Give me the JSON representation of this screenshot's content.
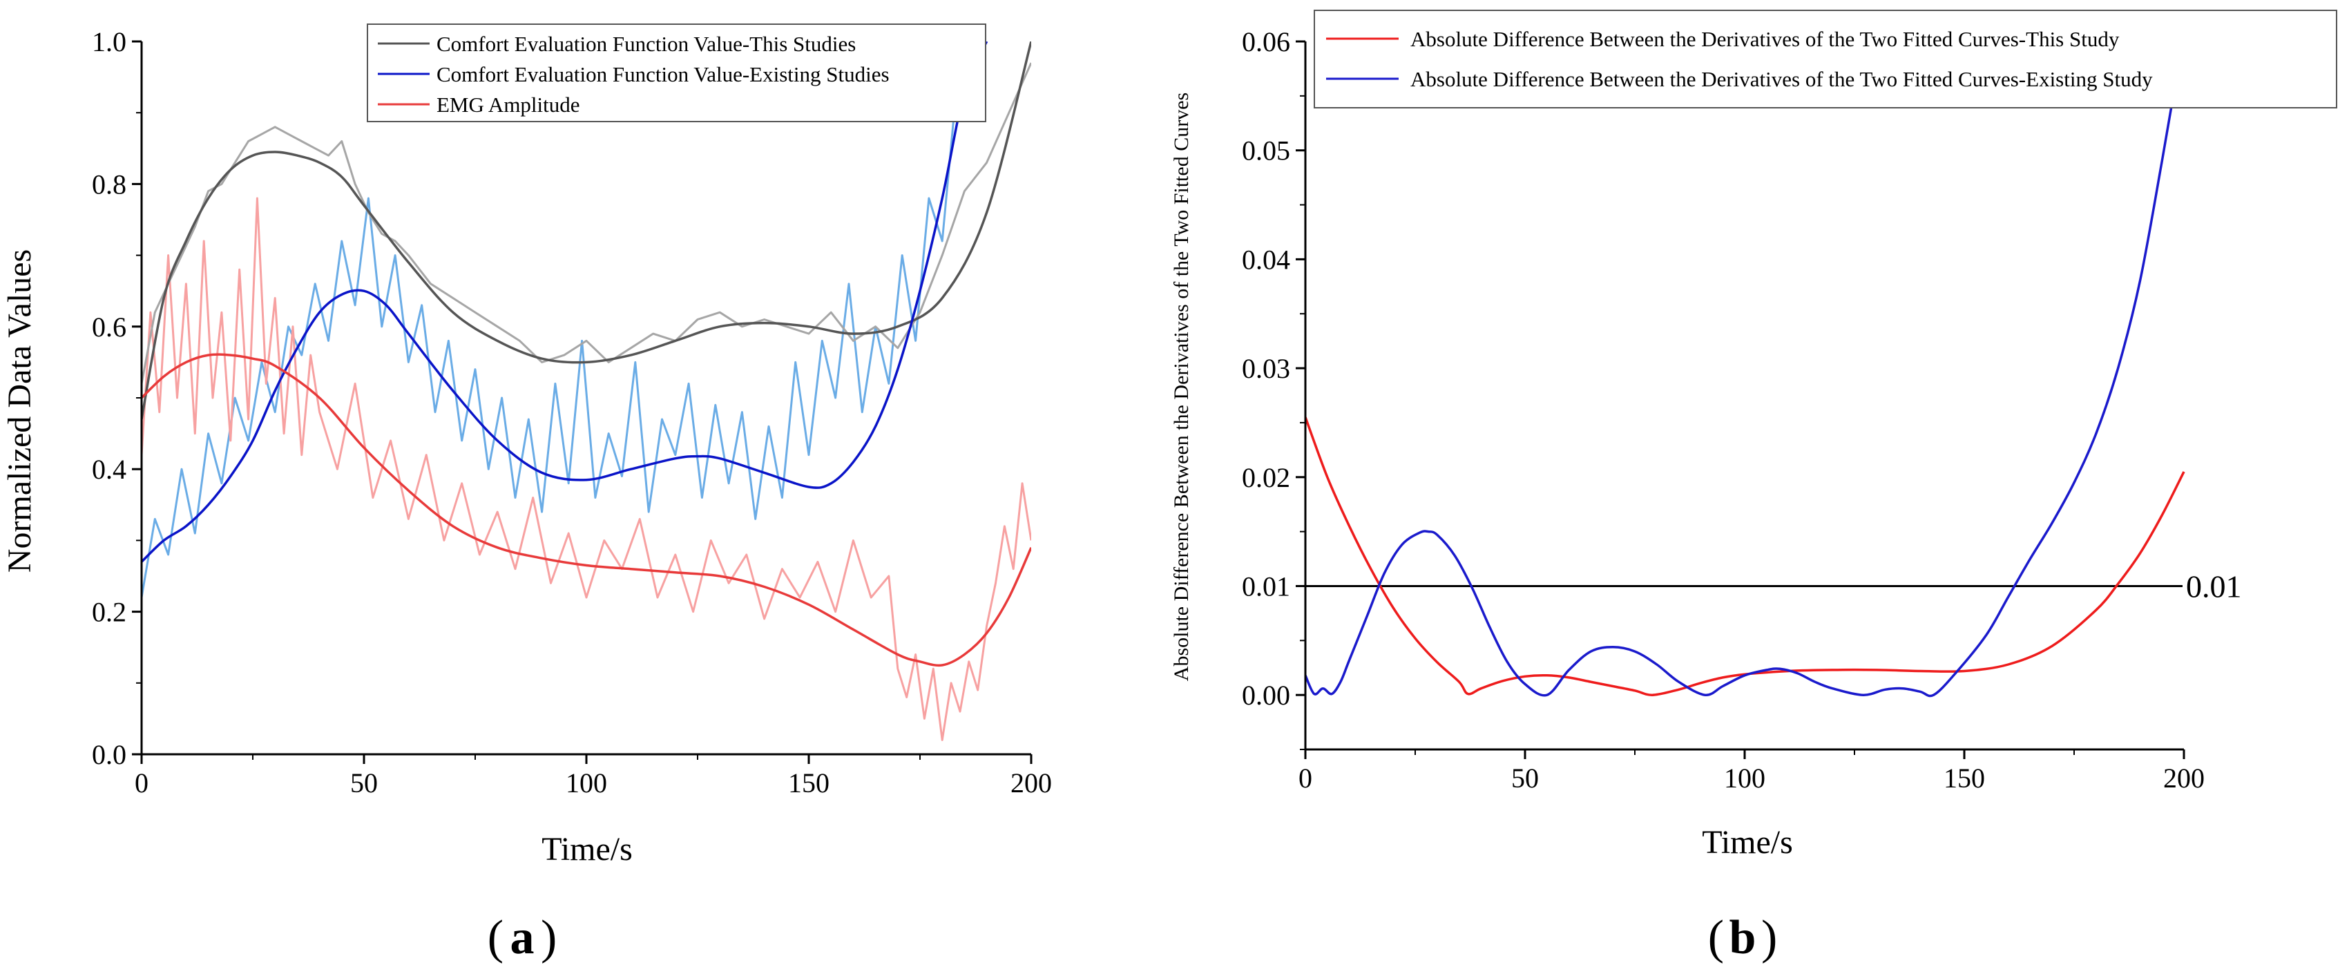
{
  "figure": {
    "panel_label_a": "a",
    "panel_label_b": "b",
    "paren_open": "(",
    "paren_close": ")"
  },
  "colors": {
    "this_study_smooth": "#555555",
    "this_study_raw": "#a6a6a6",
    "existing_smooth": "#0a14c8",
    "existing_raw": "#6aace6",
    "emg_smooth": "#e83a3a",
    "emg_raw": "#f7a1a1",
    "b_this": "#ee1c1c",
    "b_existing": "#1a1acc",
    "axis": "#000000"
  },
  "chart_data": [
    {
      "id": "a",
      "type": "line",
      "xlabel": "Time/s",
      "ylabel": "Normalized Data Values",
      "xlim": [
        0,
        200
      ],
      "ylim": [
        0,
        1.0
      ],
      "xticks": [
        "0",
        "50",
        "100",
        "150",
        "200"
      ],
      "yticks": [
        "0.0",
        "0.2",
        "0.4",
        "0.6",
        "0.8",
        "1.0"
      ],
      "legend_position": "top-right",
      "series": [
        {
          "name": "Comfort Evaluation Function Value-This Studies",
          "kind": "fitted",
          "x": [
            0,
            5,
            10,
            15,
            20,
            25,
            30,
            35,
            40,
            45,
            50,
            60,
            70,
            80,
            90,
            100,
            110,
            120,
            130,
            140,
            150,
            160,
            170,
            180,
            190,
            200
          ],
          "y": [
            0.47,
            0.64,
            0.72,
            0.78,
            0.82,
            0.84,
            0.845,
            0.84,
            0.83,
            0.81,
            0.77,
            0.69,
            0.62,
            0.58,
            0.555,
            0.55,
            0.56,
            0.58,
            0.6,
            0.605,
            0.6,
            0.59,
            0.6,
            0.64,
            0.76,
            1.0
          ]
        },
        {
          "name": "Comfort Evaluation Function Value-Existing Studies",
          "kind": "fitted",
          "x": [
            0,
            5,
            10,
            15,
            20,
            25,
            30,
            35,
            40,
            45,
            50,
            55,
            60,
            70,
            80,
            90,
            100,
            110,
            120,
            125,
            130,
            140,
            150,
            155,
            160,
            165,
            170,
            175,
            180,
            185,
            190
          ],
          "y": [
            0.27,
            0.3,
            0.32,
            0.35,
            0.39,
            0.44,
            0.51,
            0.57,
            0.62,
            0.645,
            0.65,
            0.63,
            0.59,
            0.51,
            0.44,
            0.395,
            0.385,
            0.4,
            0.415,
            0.418,
            0.415,
            0.395,
            0.375,
            0.38,
            0.41,
            0.46,
            0.54,
            0.65,
            0.78,
            0.93,
            1.0
          ]
        },
        {
          "name": "EMG Amplitude",
          "kind": "fitted",
          "x": [
            0,
            5,
            10,
            15,
            20,
            25,
            30,
            40,
            50,
            60,
            70,
            80,
            90,
            100,
            110,
            120,
            130,
            140,
            150,
            160,
            170,
            175,
            180,
            185,
            190,
            195,
            200
          ],
          "y": [
            0.5,
            0.53,
            0.55,
            0.56,
            0.56,
            0.555,
            0.545,
            0.5,
            0.43,
            0.37,
            0.32,
            0.29,
            0.275,
            0.265,
            0.26,
            0.255,
            0.25,
            0.235,
            0.21,
            0.175,
            0.14,
            0.13,
            0.125,
            0.14,
            0.17,
            0.22,
            0.29
          ]
        },
        {
          "name": "Comfort Evaluation Function Value-This Studies (raw)",
          "kind": "raw",
          "x": [
            0,
            3,
            6,
            9,
            12,
            15,
            18,
            21,
            24,
            27,
            30,
            33,
            36,
            39,
            42,
            45,
            48,
            51,
            54,
            57,
            60,
            65,
            70,
            75,
            80,
            85,
            90,
            95,
            100,
            105,
            110,
            115,
            120,
            125,
            130,
            135,
            140,
            145,
            150,
            155,
            160,
            165,
            170,
            175,
            180,
            185,
            190,
            195,
            200
          ],
          "y": [
            0.52,
            0.62,
            0.66,
            0.7,
            0.74,
            0.79,
            0.8,
            0.83,
            0.86,
            0.87,
            0.88,
            0.87,
            0.86,
            0.85,
            0.84,
            0.86,
            0.8,
            0.76,
            0.73,
            0.72,
            0.7,
            0.66,
            0.64,
            0.62,
            0.6,
            0.58,
            0.55,
            0.56,
            0.58,
            0.55,
            0.57,
            0.59,
            0.58,
            0.61,
            0.62,
            0.6,
            0.61,
            0.6,
            0.59,
            0.62,
            0.58,
            0.6,
            0.57,
            0.62,
            0.7,
            0.79,
            0.83,
            0.9,
            0.97
          ]
        },
        {
          "name": "Comfort Evaluation Function Value-Existing Studies (raw)",
          "kind": "raw",
          "x": [
            0,
            3,
            6,
            9,
            12,
            15,
            18,
            21,
            24,
            27,
            30,
            33,
            36,
            39,
            42,
            45,
            48,
            51,
            54,
            57,
            60,
            63,
            66,
            69,
            72,
            75,
            78,
            81,
            84,
            87,
            90,
            93,
            96,
            99,
            102,
            105,
            108,
            111,
            114,
            117,
            120,
            123,
            126,
            129,
            132,
            135,
            138,
            141,
            144,
            147,
            150,
            153,
            156,
            159,
            162,
            165,
            168,
            171,
            174,
            177,
            180,
            183,
            186
          ],
          "y": [
            0.22,
            0.33,
            0.28,
            0.4,
            0.31,
            0.45,
            0.38,
            0.5,
            0.44,
            0.55,
            0.48,
            0.6,
            0.56,
            0.66,
            0.58,
            0.72,
            0.63,
            0.78,
            0.6,
            0.7,
            0.55,
            0.63,
            0.48,
            0.58,
            0.44,
            0.54,
            0.4,
            0.5,
            0.36,
            0.47,
            0.34,
            0.52,
            0.38,
            0.58,
            0.36,
            0.45,
            0.39,
            0.55,
            0.34,
            0.47,
            0.42,
            0.52,
            0.36,
            0.49,
            0.38,
            0.48,
            0.33,
            0.46,
            0.36,
            0.55,
            0.42,
            0.58,
            0.5,
            0.66,
            0.48,
            0.6,
            0.52,
            0.7,
            0.58,
            0.78,
            0.72,
            0.92,
            1.0
          ]
        },
        {
          "name": "EMG Amplitude (raw)",
          "kind": "raw",
          "x": [
            0,
            2,
            4,
            6,
            8,
            10,
            12,
            14,
            16,
            18,
            20,
            22,
            24,
            26,
            28,
            30,
            32,
            34,
            36,
            38,
            40,
            44,
            48,
            52,
            56,
            60,
            64,
            68,
            72,
            76,
            80,
            84,
            88,
            92,
            96,
            100,
            104,
            108,
            112,
            116,
            120,
            124,
            128,
            132,
            136,
            140,
            144,
            148,
            152,
            156,
            160,
            164,
            168,
            170,
            172,
            174,
            176,
            178,
            180,
            182,
            184,
            186,
            188,
            190,
            192,
            194,
            196,
            198,
            200
          ],
          "y": [
            0.42,
            0.62,
            0.48,
            0.7,
            0.5,
            0.66,
            0.45,
            0.72,
            0.5,
            0.62,
            0.44,
            0.68,
            0.47,
            0.78,
            0.52,
            0.64,
            0.45,
            0.6,
            0.42,
            0.56,
            0.48,
            0.4,
            0.52,
            0.36,
            0.44,
            0.33,
            0.42,
            0.3,
            0.38,
            0.28,
            0.34,
            0.26,
            0.36,
            0.24,
            0.31,
            0.22,
            0.3,
            0.26,
            0.33,
            0.22,
            0.28,
            0.2,
            0.3,
            0.24,
            0.28,
            0.19,
            0.26,
            0.22,
            0.27,
            0.2,
            0.3,
            0.22,
            0.25,
            0.12,
            0.08,
            0.14,
            0.05,
            0.12,
            0.02,
            0.1,
            0.06,
            0.13,
            0.09,
            0.18,
            0.24,
            0.32,
            0.26,
            0.38,
            0.3
          ]
        }
      ]
    },
    {
      "id": "b",
      "type": "line",
      "xlabel": "Time/s",
      "ylabel": "Absolute Difference Between the Derivatives of the Two Fitted Curves",
      "xlim": [
        0,
        200
      ],
      "ylim": [
        -0.005,
        0.06
      ],
      "xticks": [
        "0",
        "50",
        "100",
        "150",
        "200"
      ],
      "yticks": [
        "0.00",
        "0.01",
        "0.02",
        "0.03",
        "0.04",
        "0.05",
        "0.06"
      ],
      "legend_position": "top-right",
      "reference_line": {
        "y": 0.01,
        "label": "0.01"
      },
      "series": [
        {
          "name": "Absolute Difference Between the Derivatives of the Two Fitted Curves-This Study",
          "x": [
            0,
            5,
            10,
            15,
            20,
            25,
            30,
            35,
            37,
            40,
            45,
            50,
            55,
            60,
            65,
            70,
            75,
            79,
            85,
            90,
            95,
            100,
            110,
            120,
            130,
            140,
            150,
            160,
            170,
            180,
            185,
            190,
            195,
            200
          ],
          "y": [
            0.0255,
            0.02,
            0.0155,
            0.0115,
            0.008,
            0.0052,
            0.003,
            0.0012,
            0.0001,
            0.0006,
            0.0013,
            0.0017,
            0.0018,
            0.0016,
            0.0012,
            0.0008,
            0.0004,
            0.0,
            0.0005,
            0.0011,
            0.0016,
            0.0019,
            0.0022,
            0.0023,
            0.0023,
            0.0022,
            0.0022,
            0.0028,
            0.0045,
            0.0078,
            0.0102,
            0.013,
            0.0165,
            0.0205
          ]
        },
        {
          "name": "Absolute Difference Between the Derivatives of the Two Fitted Curves-Existing Study",
          "x": [
            0,
            2,
            4,
            6,
            8,
            10,
            14,
            18,
            22,
            26,
            28,
            30,
            34,
            38,
            42,
            46,
            50,
            55,
            60,
            65,
            70,
            75,
            80,
            85,
            91,
            95,
            100,
            105,
            108,
            112,
            116,
            120,
            127,
            132,
            136,
            140,
            143,
            148,
            155,
            160,
            165,
            170,
            175,
            180,
            185,
            190,
            195,
            198
          ],
          "y": [
            0.0018,
            0.0001,
            0.0006,
            0.0001,
            0.0012,
            0.0032,
            0.0072,
            0.0112,
            0.0138,
            0.0149,
            0.015,
            0.0147,
            0.0128,
            0.0098,
            0.0062,
            0.003,
            0.001,
            0.0,
            0.0023,
            0.004,
            0.0044,
            0.004,
            0.0028,
            0.0012,
            0.0,
            0.0008,
            0.0018,
            0.0023,
            0.0024,
            0.002,
            0.0012,
            0.0006,
            0.0,
            0.0005,
            0.0006,
            0.0003,
            0.0,
            0.002,
            0.0055,
            0.009,
            0.0125,
            0.0158,
            0.0195,
            0.024,
            0.03,
            0.038,
            0.049,
            0.056
          ]
        }
      ]
    }
  ]
}
